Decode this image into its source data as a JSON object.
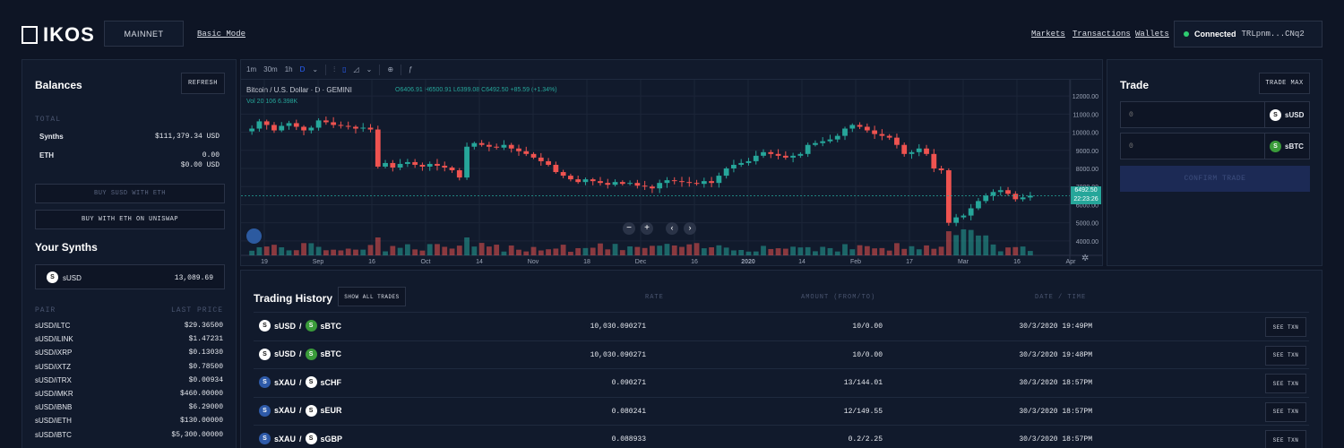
{
  "header": {
    "logo": "IKOS",
    "network": "MAINNET",
    "basic_mode": "Basic Mode",
    "nav": [
      "Markets",
      "Transactions",
      "Wallets"
    ],
    "connection": {
      "status": "Connected",
      "address": "TRLpnm...CNq2",
      "status_color": "#2ecc71"
    }
  },
  "balances": {
    "title": "Balances",
    "refresh": "REFRESH",
    "total_label": "TOTAL",
    "synths_label": "Synths",
    "synths_value": "$111,379.34 USD",
    "eth_label": "ETH",
    "eth_value": "0.00",
    "eth_usd": "$0.00 USD",
    "buy_susd": "BUY SUSD WITH ETH",
    "buy_uniswap": "BUY WITH ETH ON UNISWAP"
  },
  "your_synths": {
    "title": "Your Synths",
    "item": {
      "name": "sUSD",
      "value": "13,089.69",
      "icon": "sUSD"
    }
  },
  "pairs": {
    "col_pair": "PAIR",
    "col_price": "LAST PRICE",
    "rows": [
      {
        "pair": "sUSD/iLTC",
        "price": "$29.36500"
      },
      {
        "pair": "sUSD/iLINK",
        "price": "$1.47231"
      },
      {
        "pair": "sUSD/iXRP",
        "price": "$0.13030"
      },
      {
        "pair": "sUSD/iXTZ",
        "price": "$0.78500"
      },
      {
        "pair": "sUSD/iTRX",
        "price": "$0.00934"
      },
      {
        "pair": "sUSD/iMKR",
        "price": "$460.00000"
      },
      {
        "pair": "sUSD/iBNB",
        "price": "$6.29000"
      },
      {
        "pair": "sUSD/iETH",
        "price": "$130.00000"
      },
      {
        "pair": "sUSD/iBTC",
        "price": "$5,300.00000"
      }
    ]
  },
  "chart": {
    "toolbar": [
      "1m",
      "30m",
      "1h",
      "D"
    ],
    "title": "Bitcoin / U.S. Dollar · D · GEMINI",
    "ohlc": "O6406.91 H6500.91 L6399.08 C6492.50 +85.59 (+1.34%)",
    "volume": "Vol 20  106  6.398K",
    "price_tag": "6492.50",
    "time_tag": "22:23:26",
    "accent": "#26a69a",
    "down_color": "#ef5350"
  },
  "chart_data": {
    "type": "candlestick",
    "x_tick_labels": [
      "19",
      "Sep",
      "16",
      "Oct",
      "14",
      "Nov",
      "18",
      "Dec",
      "16",
      "2020",
      "14",
      "Feb",
      "17",
      "Mar",
      "16",
      "Apr"
    ],
    "y_tick_labels": [
      "12000.00",
      "11000.00",
      "10000.00",
      "9000.00",
      "8000.00",
      "7000.00",
      "6000.00",
      "5000.00",
      "4000.00"
    ],
    "ylim": [
      3500,
      12500
    ],
    "close": [
      10200,
      10600,
      10400,
      10100,
      10350,
      10500,
      10300,
      10100,
      10250,
      10650,
      10550,
      10400,
      10350,
      10300,
      10200,
      10250,
      10150,
      8100,
      8300,
      8050,
      8250,
      8350,
      8200,
      8100,
      8250,
      8150,
      8050,
      7900,
      7500,
      9200,
      9400,
      9300,
      9200,
      9150,
      9300,
      9100,
      8950,
      8800,
      8600,
      8400,
      8200,
      7800,
      7600,
      7400,
      7250,
      7400,
      7300,
      7200,
      7100,
      7250,
      7150,
      7200,
      7050,
      7000,
      6900,
      7200,
      7350,
      7300,
      7250,
      7200,
      7150,
      7300,
      7200,
      7600,
      8000,
      8200,
      8300,
      8400,
      8700,
      8900,
      8800,
      8700,
      8600,
      8700,
      8800,
      9300,
      9400,
      9500,
      9600,
      9800,
      10200,
      10400,
      10300,
      10100,
      9900,
      9800,
      9700,
      9300,
      8800,
      8900,
      9100,
      8800,
      8000,
      7900,
      5000,
      5300,
      5400,
      5800,
      6200,
      6500,
      6700,
      6800,
      6600,
      6300,
      6400,
      6492.5
    ],
    "volume_note": "volume histogram at bottom"
  },
  "trade": {
    "title": "Trade",
    "trade_max": "TRADE MAX",
    "from_placeholder": "0",
    "from_synth": "sUSD",
    "to_placeholder": "0",
    "to_synth": "sBTC",
    "confirm": "CONFIRM TRADE"
  },
  "history": {
    "title": "Trading History",
    "show_all": "SHOW ALL TRADES",
    "col_rate": "RATE",
    "col_amount": "AMOUNT (FROM/TO)",
    "col_date": "DATE / TIME",
    "see_txn": "SEE TXN",
    "rows": [
      {
        "from": "sUSD",
        "to": "sBTC",
        "from_color": "white",
        "to_color": "green",
        "rate": "10,030.090271",
        "amount": "10/0.00",
        "date": "30/3/2020 19:49PM"
      },
      {
        "from": "sUSD",
        "to": "sBTC",
        "from_color": "white",
        "to_color": "green",
        "rate": "10,030.090271",
        "amount": "10/0.00",
        "date": "30/3/2020 19:48PM"
      },
      {
        "from": "sXAU",
        "to": "sCHF",
        "from_color": "blue",
        "to_color": "white",
        "rate": "0.090271",
        "amount": "13/144.01",
        "date": "30/3/2020 18:57PM"
      },
      {
        "from": "sXAU",
        "to": "sEUR",
        "from_color": "blue",
        "to_color": "white",
        "rate": "0.080241",
        "amount": "12/149.55",
        "date": "30/3/2020 18:57PM"
      },
      {
        "from": "sXAU",
        "to": "sGBP",
        "from_color": "blue",
        "to_color": "white",
        "rate": "0.088933",
        "amount": "0.2/2.25",
        "date": "30/3/2020 18:57PM"
      }
    ]
  }
}
